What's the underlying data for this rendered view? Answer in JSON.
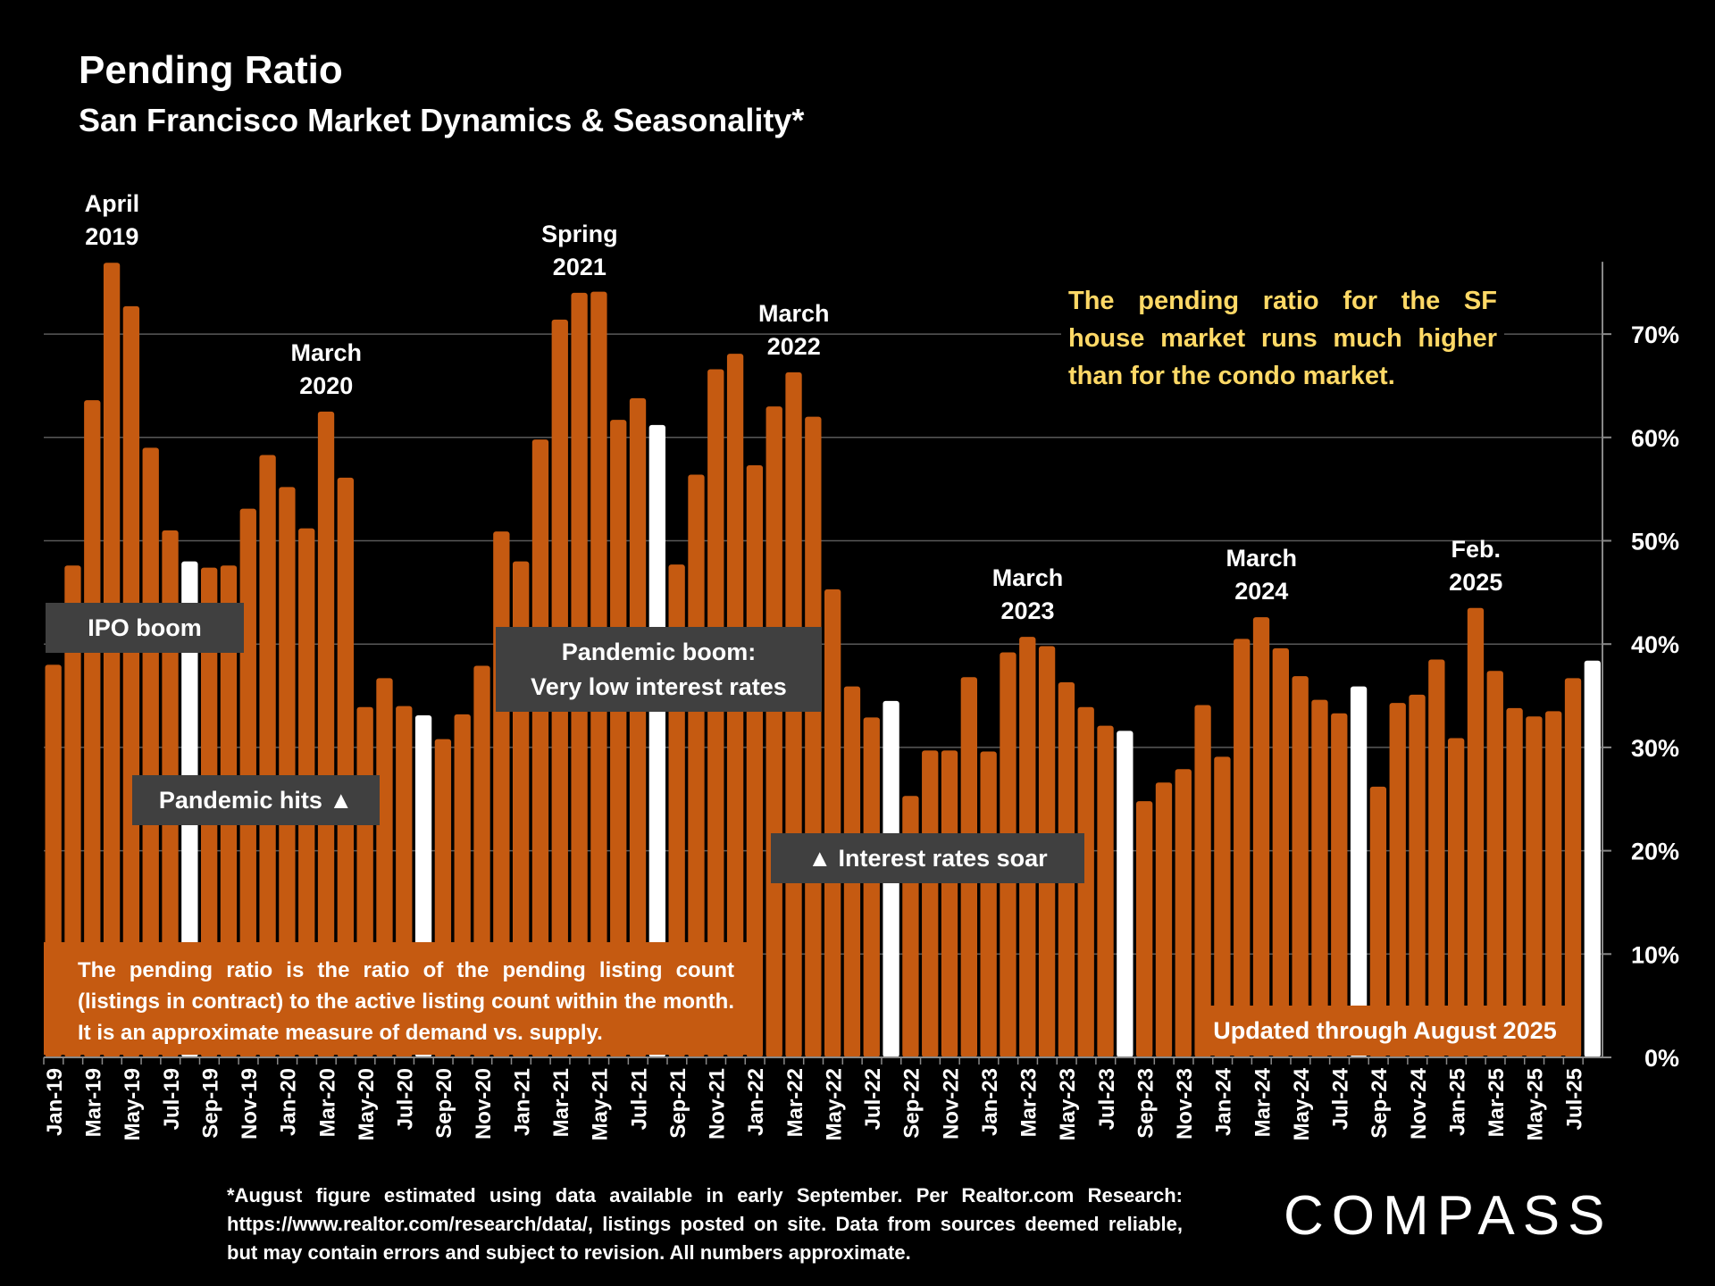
{
  "chart_data": {
    "type": "bar",
    "title": "Pending Ratio",
    "subtitle": "San Francisco Market Dynamics & Seasonality*",
    "xlabel": "",
    "ylabel": "",
    "ylim": [
      0,
      77
    ],
    "yticks": [
      "0%",
      "10%",
      "20%",
      "30%",
      "40%",
      "50%",
      "60%",
      "70%"
    ],
    "ytick_values": [
      0,
      10,
      20,
      30,
      40,
      50,
      60,
      70
    ],
    "y_axis_side": "right",
    "grid": true,
    "colors": {
      "bar": "#C55A11",
      "highlight": "#FFFFFF",
      "annotation_box": "#404040",
      "callout_text": "#FFD966"
    },
    "categories": [
      "Jan-19",
      "Feb-19",
      "Mar-19",
      "Apr-19",
      "May-19",
      "Jun-19",
      "Jul-19",
      "Aug-19",
      "Sep-19",
      "Oct-19",
      "Nov-19",
      "Dec-19",
      "Jan-20",
      "Feb-20",
      "Mar-20",
      "Apr-20",
      "May-20",
      "Jun-20",
      "Jul-20",
      "Aug-20",
      "Sep-20",
      "Oct-20",
      "Nov-20",
      "Dec-20",
      "Jan-21",
      "Feb-21",
      "Mar-21",
      "Apr-21",
      "May-21",
      "Jun-21",
      "Jul-21",
      "Aug-21",
      "Sep-21",
      "Oct-21",
      "Nov-21",
      "Dec-21",
      "Jan-22",
      "Feb-22",
      "Mar-22",
      "Apr-22",
      "May-22",
      "Jun-22",
      "Jul-22",
      "Aug-22",
      "Sep-22",
      "Oct-22",
      "Nov-22",
      "Dec-22",
      "Jan-23",
      "Feb-23",
      "Mar-23",
      "Apr-23",
      "May-23",
      "Jun-23",
      "Jul-23",
      "Aug-23",
      "Sep-23",
      "Oct-23",
      "Nov-23",
      "Dec-23",
      "Jan-24",
      "Feb-24",
      "Mar-24",
      "Apr-24",
      "May-24",
      "Jun-24",
      "Jul-24",
      "Aug-24",
      "Sep-24",
      "Oct-24",
      "Nov-24",
      "Dec-24",
      "Jan-25",
      "Feb-25",
      "Mar-25",
      "Apr-25",
      "May-25",
      "Jun-25",
      "Jul-25",
      "Aug-25"
    ],
    "values": [
      38.0,
      47.6,
      63.6,
      76.9,
      72.7,
      59.0,
      51.0,
      48.0,
      47.4,
      47.6,
      53.1,
      58.3,
      55.2,
      51.2,
      62.5,
      56.1,
      33.9,
      36.7,
      34.0,
      33.1,
      30.8,
      33.2,
      37.9,
      50.9,
      48.0,
      59.8,
      71.4,
      74.0,
      74.1,
      61.7,
      63.8,
      61.2,
      47.7,
      56.4,
      66.6,
      68.1,
      57.3,
      63.0,
      66.3,
      62.0,
      45.3,
      35.9,
      32.9,
      34.5,
      25.3,
      29.7,
      29.7,
      36.8,
      29.6,
      39.2,
      40.7,
      39.8,
      36.3,
      33.9,
      32.1,
      31.6,
      24.8,
      26.6,
      27.9,
      34.1,
      29.1,
      40.5,
      42.6,
      39.6,
      36.9,
      34.6,
      33.3,
      35.9,
      26.2,
      34.3,
      35.1,
      38.5,
      30.9,
      43.5,
      37.4,
      33.8,
      33.0,
      33.5,
      36.7,
      38.4
    ],
    "highlighted_months": [
      "Aug-19",
      "Aug-20",
      "Aug-21",
      "Aug-22",
      "Aug-23",
      "Aug-24",
      "Aug-25"
    ],
    "peak_labels": [
      {
        "category": "Apr-19",
        "line1": "April",
        "line2": "2019"
      },
      {
        "category": "Mar-20",
        "line1": "March",
        "line2": "2020"
      },
      {
        "category": "Apr-21",
        "line1": "Spring",
        "line2": "2021"
      },
      {
        "category": "Mar-22",
        "line1": "March",
        "line2": "2022"
      },
      {
        "category": "Mar-23",
        "line1": "March",
        "line2": "2023"
      },
      {
        "category": "Mar-24",
        "line1": "March",
        "line2": "2024"
      },
      {
        "category": "Feb-25",
        "line1": "Feb.",
        "line2": "2025"
      }
    ],
    "annotations": {
      "ipo": "IPO boom",
      "pandemic_hits": "Pandemic hits ▲",
      "pandemic_boom_1": "Pandemic boom:",
      "pandemic_boom_2": "Very low interest rates",
      "rates_soar": "▲ Interest rates soar",
      "callout": "The pending ratio for the SF house market runs much higher than for the condo market.",
      "definition": "The pending ratio is the ratio of the pending listing count (listings in contract) to the active listing count within the month. It is an approximate measure of demand vs. supply.",
      "updated": "Updated through August 2025"
    }
  },
  "footnote": "*August figure estimated using data available in early September. Per Realtor.com Research: https://www.realtor.com/research/data/, listings posted on site. Data from sources deemed reliable, but may contain errors and subject to revision. All numbers approximate.",
  "logo": "COMPASS"
}
